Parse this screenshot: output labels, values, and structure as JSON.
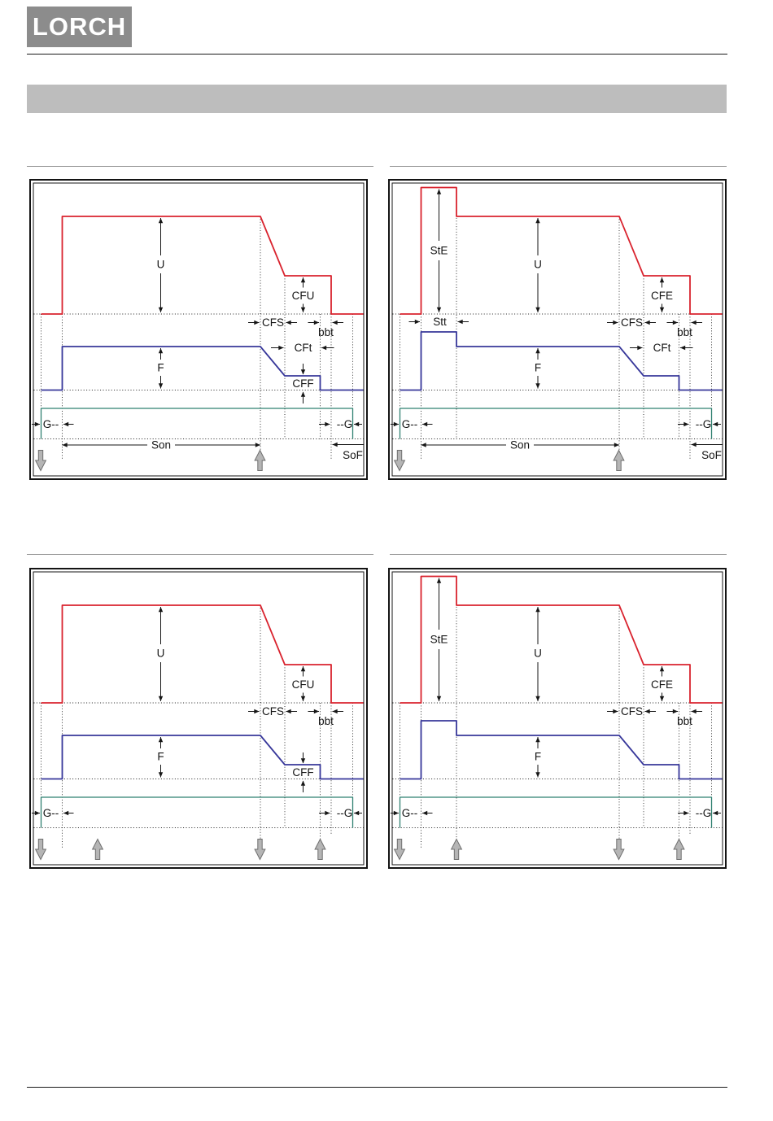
{
  "page": {
    "logo_text": "LORCH",
    "title_bar_text": ""
  },
  "colors": {
    "voltage_curve": "#d9232e",
    "wire_feed_curve": "#37379a",
    "gas_line": "#2f8070",
    "trigger_arrow_fill": "#b5b5b5",
    "trigger_arrow_outline": "#6f6f6f",
    "logo_bg": "#8c8c8c",
    "title_bar_bg": "#bdbdbd"
  },
  "labels": {
    "U": "U",
    "F": "F",
    "CFU": "CFU",
    "CFE": "CFE",
    "CFS": "CFS",
    "CFt": "CFt",
    "CFF": "CFF",
    "bbt": "bbt",
    "StE": "StE",
    "Stt": "Stt",
    "Gpre": "G--",
    "Gpost": "--G",
    "Son": "Son",
    "SoF": "SoF"
  },
  "panels": [
    {
      "position": "top-left",
      "mode": "2-step",
      "start_energy": false,
      "labels_shown": [
        "U",
        "CFU",
        "CFS",
        "bbt",
        "CFt",
        "CFF",
        "F",
        "G--",
        "--G",
        "Son",
        "SoF"
      ],
      "trigger_sequence": [
        "press",
        "release"
      ]
    },
    {
      "position": "top-right",
      "mode": "2-step with start energy",
      "start_energy": true,
      "labels_shown": [
        "StE",
        "Stt",
        "U",
        "CFS",
        "CFE",
        "bbt",
        "CFt",
        "F",
        "G--",
        "--G",
        "Son",
        "SoF"
      ],
      "trigger_sequence": [
        "press",
        "release"
      ]
    },
    {
      "position": "bottom-left",
      "mode": "4-step",
      "start_energy": false,
      "labels_shown": [
        "U",
        "CFU",
        "CFS",
        "bbt",
        "CFF",
        "F",
        "G--",
        "--G"
      ],
      "trigger_sequence": [
        "press",
        "release",
        "press",
        "release"
      ]
    },
    {
      "position": "bottom-right",
      "mode": "4-step with start energy",
      "start_energy": true,
      "labels_shown": [
        "StE",
        "U",
        "CFS",
        "CFE",
        "bbt",
        "F",
        "G--",
        "--G"
      ],
      "trigger_sequence": [
        "press",
        "release",
        "press",
        "release"
      ]
    }
  ]
}
